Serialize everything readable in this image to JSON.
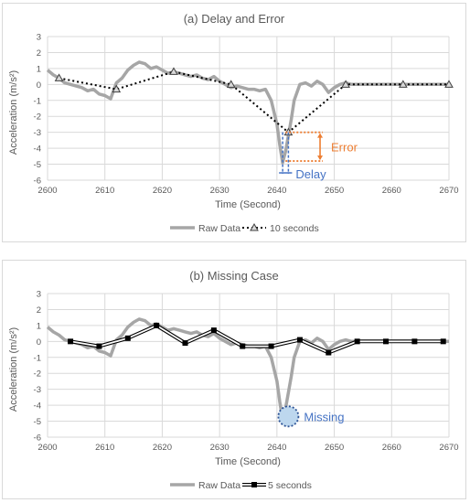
{
  "chart_data": [
    {
      "type": "line",
      "title": "(a) Delay and Error",
      "xlabel": "Time (Second)",
      "ylabel": "Acceleration (m/s²)",
      "xlim": [
        2600,
        2670
      ],
      "ylim": [
        -6,
        3
      ],
      "xticks": [
        2600,
        2610,
        2620,
        2630,
        2640,
        2650,
        2660,
        2670
      ],
      "yticks": [
        3,
        2,
        1,
        0,
        -1,
        -2,
        -3,
        -4,
        -5,
        -6
      ],
      "grid": true,
      "legend_position": "bottom",
      "series": [
        {
          "name": "Raw Data",
          "style": "solid",
          "color": "#a6a6a6",
          "x": [
            2600,
            2601,
            2602,
            2603,
            2604,
            2605,
            2606,
            2607,
            2608,
            2609,
            2610,
            2611,
            2612,
            2613,
            2614,
            2615,
            2616,
            2617,
            2618,
            2619,
            2620,
            2621,
            2622,
            2623,
            2624,
            2625,
            2626,
            2627,
            2628,
            2629,
            2630,
            2631,
            2632,
            2633,
            2634,
            2635,
            2636,
            2637,
            2638,
            2639,
            2640,
            2640.5,
            2641,
            2641.5,
            2642,
            2642.5,
            2643,
            2644,
            2645,
            2646,
            2647,
            2648,
            2649,
            2650,
            2651,
            2652,
            2653,
            2655,
            2660,
            2665,
            2670
          ],
          "y": [
            0.9,
            0.6,
            0.4,
            0.1,
            0.0,
            -0.1,
            -0.2,
            -0.4,
            -0.3,
            -0.6,
            -0.7,
            -0.9,
            0.1,
            0.4,
            0.9,
            1.2,
            1.4,
            1.3,
            1.0,
            1.1,
            0.9,
            0.7,
            0.8,
            0.7,
            0.6,
            0.5,
            0.6,
            0.4,
            0.3,
            0.5,
            0.2,
            0.0,
            -0.2,
            -0.1,
            -0.2,
            -0.3,
            -0.3,
            -0.4,
            -0.3,
            -1.0,
            -2.5,
            -3.8,
            -4.9,
            -4.2,
            -3.2,
            -2.2,
            -1.0,
            0.0,
            0.1,
            -0.1,
            0.2,
            0.0,
            -0.5,
            -0.2,
            0.0,
            0.1,
            0.0,
            0.0,
            0.0,
            0.0,
            0.0
          ]
        },
        {
          "name": "10 seconds",
          "style": "dotted",
          "color": "#000000",
          "marker": "triangle",
          "x": [
            2602,
            2612,
            2622,
            2632,
            2642,
            2652,
            2662,
            2670
          ],
          "y": [
            0.4,
            -0.3,
            0.8,
            0.0,
            -3.0,
            0.0,
            0.0,
            0.0
          ]
        }
      ],
      "annotations": [
        {
          "text": "Error",
          "color": "#ed7d31"
        },
        {
          "text": "Delay",
          "color": "#4472c4"
        }
      ],
      "error_bracket": {
        "y_from": -3.0,
        "y_to": -4.8,
        "x_from": 2641.5,
        "x_to": 2648
      },
      "delay_bracket": {
        "x_from": 2641,
        "x_to": 2642,
        "y_from": -3.0,
        "y_to": -5.6
      }
    },
    {
      "type": "line",
      "title": "(b) Missing Case",
      "xlabel": "Time (Second)",
      "ylabel": "Acceleration (m/s²)",
      "xlim": [
        2600,
        2670
      ],
      "ylim": [
        -6,
        3
      ],
      "xticks": [
        2600,
        2610,
        2620,
        2630,
        2640,
        2650,
        2660,
        2670
      ],
      "yticks": [
        3,
        2,
        1,
        0,
        -1,
        -2,
        -3,
        -4,
        -5,
        -6
      ],
      "grid": true,
      "legend_position": "bottom",
      "series": [
        {
          "name": "Raw Data",
          "style": "solid",
          "color": "#a6a6a6",
          "x": [
            2600,
            2601,
            2602,
            2603,
            2604,
            2605,
            2606,
            2607,
            2608,
            2609,
            2610,
            2611,
            2612,
            2613,
            2614,
            2615,
            2616,
            2617,
            2618,
            2619,
            2620,
            2621,
            2622,
            2623,
            2624,
            2625,
            2626,
            2627,
            2628,
            2629,
            2630,
            2631,
            2632,
            2633,
            2634,
            2635,
            2636,
            2637,
            2638,
            2639,
            2640,
            2640.5,
            2641,
            2641.5,
            2642,
            2642.5,
            2643,
            2644,
            2645,
            2646,
            2647,
            2648,
            2649,
            2650,
            2651,
            2652,
            2653,
            2655,
            2660,
            2665,
            2670
          ],
          "y": [
            0.9,
            0.6,
            0.4,
            0.1,
            0.0,
            -0.1,
            -0.2,
            -0.4,
            -0.3,
            -0.6,
            -0.7,
            -0.9,
            0.1,
            0.4,
            0.9,
            1.2,
            1.4,
            1.3,
            1.0,
            1.1,
            0.9,
            0.7,
            0.8,
            0.7,
            0.6,
            0.5,
            0.6,
            0.4,
            0.3,
            0.5,
            0.2,
            0.0,
            -0.2,
            -0.1,
            -0.2,
            -0.3,
            -0.3,
            -0.4,
            -0.3,
            -1.0,
            -2.5,
            -3.8,
            -4.9,
            -4.2,
            -3.2,
            -2.2,
            -1.0,
            0.0,
            0.1,
            -0.1,
            0.2,
            0.0,
            -0.5,
            -0.2,
            0.0,
            0.1,
            0.0,
            0.0,
            0.0,
            0.0,
            0.0
          ]
        },
        {
          "name": "5 seconds",
          "style": "double",
          "color": "#000000",
          "marker": "square",
          "x": [
            2604,
            2609,
            2614,
            2619,
            2624,
            2629,
            2634,
            2639,
            2644,
            2649,
            2654,
            2659,
            2664,
            2669
          ],
          "y": [
            0.0,
            -0.3,
            0.2,
            1.0,
            -0.1,
            0.7,
            -0.3,
            -0.3,
            0.1,
            -0.7,
            0.0,
            0.0,
            0.0,
            0.0
          ]
        }
      ],
      "annotations": [
        {
          "text": "Missing",
          "color": "#4472c4",
          "at": {
            "x": 2642,
            "y": -4.7
          }
        }
      ]
    }
  ]
}
